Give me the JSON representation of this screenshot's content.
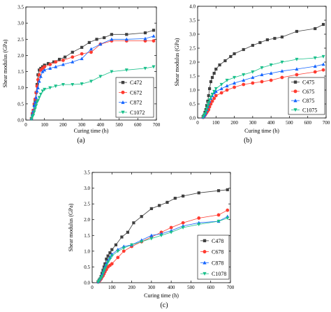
{
  "chart_data": [
    {
      "panel_label": "(a)",
      "type": "line",
      "xlabel": "Curing time (h)",
      "ylabel": "Shear modulus (GPa)",
      "xlim": [
        0,
        700
      ],
      "ylim": [
        0,
        3.5
      ],
      "xticks": [
        0,
        100,
        200,
        300,
        400,
        500,
        600,
        700
      ],
      "yticks": [
        0.0,
        0.5,
        1.0,
        1.5,
        2.0,
        2.5,
        3.0,
        3.5
      ],
      "legend_position": "bottom-right",
      "grid": false,
      "series": [
        {
          "name": "C472",
          "color": "#404040",
          "marker": "square",
          "x": [
            30,
            35,
            40,
            45,
            50,
            55,
            60,
            65,
            72,
            80,
            90,
            100,
            120,
            150,
            180,
            210,
            250,
            300,
            340,
            380,
            420,
            460,
            540,
            640,
            685
          ],
          "y": [
            0.05,
            0.2,
            0.3,
            0.45,
            0.6,
            0.85,
            1.1,
            1.4,
            1.55,
            1.6,
            1.65,
            1.7,
            1.75,
            1.8,
            1.88,
            1.95,
            2.1,
            2.25,
            2.4,
            2.5,
            2.55,
            2.65,
            2.65,
            2.7,
            2.78
          ]
        },
        {
          "name": "C672",
          "color": "#ff3b30",
          "marker": "circle",
          "x": [
            30,
            35,
            40,
            45,
            50,
            55,
            60,
            65,
            72,
            80,
            90,
            100,
            130,
            160,
            200,
            250,
            300,
            350,
            400,
            460,
            540,
            640,
            685
          ],
          "y": [
            0.05,
            0.2,
            0.3,
            0.5,
            0.65,
            0.85,
            1.05,
            1.25,
            1.4,
            1.55,
            1.6,
            1.65,
            1.72,
            1.8,
            1.85,
            1.95,
            2.05,
            2.1,
            2.35,
            2.45,
            2.45,
            2.45,
            2.45
          ]
        },
        {
          "name": "C872",
          "color": "#1565ff",
          "marker": "triangle-up",
          "x": [
            30,
            35,
            40,
            45,
            50,
            55,
            60,
            65,
            72,
            80,
            90,
            100,
            130,
            160,
            200,
            250,
            300,
            350,
            400,
            460,
            540,
            640,
            685
          ],
          "y": [
            0.05,
            0.18,
            0.28,
            0.45,
            0.55,
            0.7,
            0.9,
            1.0,
            1.2,
            1.35,
            1.5,
            1.55,
            1.6,
            1.65,
            1.72,
            1.8,
            1.9,
            2.2,
            2.35,
            2.5,
            2.5,
            2.52,
            2.6
          ]
        },
        {
          "name": "C1072",
          "color": "#19c08a",
          "marker": "triangle-down",
          "x": [
            30,
            35,
            40,
            45,
            50,
            55,
            60,
            65,
            72,
            80,
            90,
            100,
            130,
            160,
            200,
            250,
            300,
            350,
            400,
            460,
            540,
            640,
            685
          ],
          "y": [
            0.03,
            0.1,
            0.15,
            0.25,
            0.35,
            0.45,
            0.55,
            0.6,
            0.7,
            0.8,
            0.9,
            0.95,
            1.0,
            1.05,
            1.1,
            1.1,
            1.12,
            1.2,
            1.35,
            1.5,
            1.55,
            1.6,
            1.65
          ]
        }
      ]
    },
    {
      "panel_label": "(b)",
      "type": "line",
      "xlabel": "Curing time (h)",
      "ylabel": "Shear modulus (GPa)",
      "xlim": [
        0,
        700
      ],
      "ylim": [
        0,
        4.0
      ],
      "xticks": [
        0,
        100,
        200,
        300,
        400,
        500,
        600,
        700
      ],
      "yticks": [
        0.0,
        0.5,
        1.0,
        1.5,
        2.0,
        2.5,
        3.0,
        3.5,
        4.0
      ],
      "legend_position": "bottom-right",
      "grid": false,
      "series": [
        {
          "name": "C475",
          "color": "#404040",
          "marker": "square",
          "x": [
            30,
            35,
            40,
            45,
            50,
            55,
            60,
            65,
            72,
            80,
            90,
            100,
            120,
            150,
            180,
            200,
            250,
            300,
            340,
            380,
            420,
            460,
            540,
            640,
            685
          ],
          "y": [
            0.05,
            0.1,
            0.2,
            0.3,
            0.45,
            0.6,
            0.8,
            1.05,
            1.3,
            1.45,
            1.6,
            1.75,
            1.9,
            2.05,
            2.2,
            2.3,
            2.45,
            2.6,
            2.7,
            2.8,
            2.85,
            2.9,
            3.1,
            3.2,
            3.35
          ]
        },
        {
          "name": "C675",
          "color": "#ff3b30",
          "marker": "circle",
          "x": [
            30,
            35,
            40,
            45,
            50,
            55,
            60,
            65,
            72,
            80,
            90,
            100,
            130,
            160,
            200,
            250,
            300,
            350,
            400,
            460,
            540,
            640,
            685
          ],
          "y": [
            0.02,
            0.06,
            0.1,
            0.15,
            0.2,
            0.25,
            0.3,
            0.4,
            0.5,
            0.6,
            0.7,
            0.8,
            0.9,
            1.0,
            1.1,
            1.2,
            1.25,
            1.3,
            1.35,
            1.45,
            1.55,
            1.65,
            1.72
          ]
        },
        {
          "name": "C875",
          "color": "#1565ff",
          "marker": "triangle-up",
          "x": [
            30,
            35,
            40,
            45,
            50,
            55,
            60,
            65,
            72,
            80,
            90,
            100,
            130,
            160,
            200,
            250,
            300,
            350,
            400,
            460,
            540,
            640,
            685
          ],
          "y": [
            0.03,
            0.08,
            0.12,
            0.2,
            0.3,
            0.4,
            0.5,
            0.6,
            0.7,
            0.8,
            0.9,
            0.95,
            1.05,
            1.15,
            1.25,
            1.35,
            1.45,
            1.55,
            1.6,
            1.68,
            1.75,
            1.85,
            1.92
          ]
        },
        {
          "name": "C1075",
          "color": "#19c08a",
          "marker": "triangle-down",
          "x": [
            30,
            35,
            40,
            45,
            50,
            55,
            60,
            65,
            72,
            80,
            90,
            100,
            130,
            160,
            200,
            250,
            300,
            350,
            400,
            460,
            540,
            640,
            685
          ],
          "y": [
            0.03,
            0.1,
            0.15,
            0.25,
            0.35,
            0.45,
            0.55,
            0.65,
            0.75,
            0.85,
            0.95,
            1.05,
            1.2,
            1.35,
            1.45,
            1.55,
            1.65,
            1.8,
            1.9,
            2.0,
            2.1,
            2.15,
            2.2
          ]
        }
      ]
    },
    {
      "panel_label": "(c)",
      "type": "line",
      "xlabel": "Curing time (h)",
      "ylabel": "Shear modulus (GPa)",
      "xlim": [
        0,
        700
      ],
      "ylim": [
        0,
        3.5
      ],
      "xticks": [
        0,
        100,
        200,
        300,
        400,
        500,
        600,
        700
      ],
      "yticks": [
        0.0,
        0.5,
        1.0,
        1.5,
        2.0,
        2.5,
        3.0,
        3.5
      ],
      "legend_position": "bottom-right",
      "grid": false,
      "series": [
        {
          "name": "C478",
          "color": "#404040",
          "marker": "square",
          "x": [
            30,
            35,
            40,
            45,
            50,
            55,
            60,
            65,
            72,
            80,
            90,
            100,
            120,
            150,
            180,
            210,
            250,
            300,
            340,
            380,
            420,
            460,
            540,
            640,
            685
          ],
          "y": [
            0.03,
            0.08,
            0.12,
            0.2,
            0.3,
            0.4,
            0.5,
            0.6,
            0.75,
            0.85,
            0.95,
            1.05,
            1.2,
            1.45,
            1.6,
            1.9,
            2.1,
            2.35,
            2.45,
            2.55,
            2.68,
            2.75,
            2.85,
            2.92,
            2.95
          ]
        },
        {
          "name": "C678",
          "color": "#ff3b30",
          "marker": "circle",
          "x": [
            30,
            35,
            40,
            45,
            50,
            55,
            60,
            65,
            72,
            80,
            90,
            100,
            130,
            160,
            200,
            250,
            300,
            350,
            400,
            460,
            540,
            640,
            685
          ],
          "y": [
            0.02,
            0.05,
            0.08,
            0.12,
            0.18,
            0.22,
            0.28,
            0.35,
            0.42,
            0.5,
            0.55,
            0.6,
            0.8,
            1.0,
            1.15,
            1.3,
            1.45,
            1.6,
            1.75,
            1.9,
            2.05,
            2.15,
            2.3
          ]
        },
        {
          "name": "C878",
          "color": "#1565ff",
          "marker": "triangle-up",
          "x": [
            30,
            35,
            40,
            45,
            50,
            55,
            60,
            65,
            72,
            80,
            90,
            100,
            130,
            160,
            200,
            250,
            300,
            350,
            400,
            460,
            540,
            640,
            685
          ],
          "y": [
            0.03,
            0.08,
            0.12,
            0.18,
            0.25,
            0.32,
            0.4,
            0.5,
            0.6,
            0.7,
            0.8,
            0.9,
            1.05,
            1.15,
            1.2,
            1.35,
            1.5,
            1.55,
            1.65,
            1.8,
            1.9,
            1.95,
            2.1
          ]
        },
        {
          "name": "C1078",
          "color": "#19c08a",
          "marker": "triangle-down",
          "x": [
            30,
            35,
            40,
            45,
            50,
            55,
            60,
            65,
            72,
            80,
            90,
            100,
            130,
            160,
            200,
            250,
            300,
            350,
            400,
            460,
            540,
            640,
            685
          ],
          "y": [
            0.02,
            0.06,
            0.1,
            0.15,
            0.2,
            0.3,
            0.38,
            0.45,
            0.55,
            0.65,
            0.75,
            0.85,
            1.0,
            1.1,
            1.2,
            1.3,
            1.4,
            1.5,
            1.6,
            1.75,
            1.85,
            1.95,
            2.05
          ]
        }
      ]
    }
  ]
}
